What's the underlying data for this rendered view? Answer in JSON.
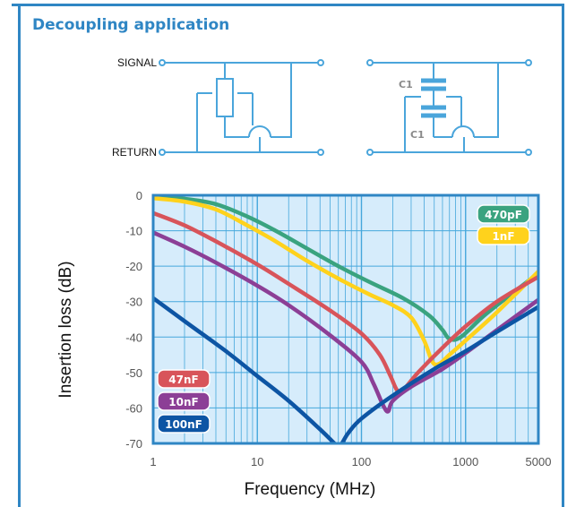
{
  "header": {
    "title": "Decoupling application"
  },
  "schematic": {
    "signal_label": "SIGNAL",
    "return_label": "RETURN",
    "cap_label_top": "C1",
    "cap_label_bottom": "C1"
  },
  "colors": {
    "frame": "#2f86c4",
    "plot_bg": "#d6ecfb",
    "grid": "#45a7dc"
  },
  "chart_data": {
    "type": "line",
    "xlabel": "Frequency (MHz)",
    "ylabel": "Insertion loss (dB)",
    "xscale": "log",
    "xlim": [
      1,
      5000
    ],
    "ylim": [
      -70,
      0
    ],
    "x_ticks": [
      {
        "value": 1,
        "label": "1"
      },
      {
        "value": 10,
        "label": "10"
      },
      {
        "value": 100,
        "label": "100"
      },
      {
        "value": 1000,
        "label": "1000"
      },
      {
        "value": 5000,
        "label": "5000"
      }
    ],
    "y_ticks": [
      {
        "value": 0,
        "label": "0"
      },
      {
        "value": -10,
        "label": "-10"
      },
      {
        "value": -20,
        "label": "-20"
      },
      {
        "value": -30,
        "label": "-30"
      },
      {
        "value": -40,
        "label": "-40"
      },
      {
        "value": -50,
        "label": "-50"
      },
      {
        "value": -60,
        "label": "-60"
      },
      {
        "value": -70,
        "label": "-70"
      }
    ],
    "grid": true,
    "legend_position": "split: top-right and bottom-left",
    "series": [
      {
        "name": "470pF",
        "color": "#3aa37f",
        "legend": "top",
        "x": [
          1,
          2,
          4,
          8,
          15,
          30,
          60,
          120,
          250,
          450,
          600,
          700,
          900,
          1500,
          3000,
          5000
        ],
        "y": [
          -0.5,
          -1,
          -2.5,
          -6,
          -10,
          -15,
          -20,
          -24.5,
          -29,
          -34,
          -38,
          -40.5,
          -40,
          -34,
          -27,
          -22
        ]
      },
      {
        "name": "1nF",
        "color": "#ffd21c",
        "legend": "top",
        "x": [
          1,
          2,
          4,
          8,
          15,
          30,
          60,
          120,
          200,
          300,
          400,
          480,
          560,
          700,
          1000,
          2000,
          5000
        ],
        "y": [
          -0.8,
          -1.8,
          -4,
          -8.5,
          -13,
          -18.5,
          -23.5,
          -28,
          -31,
          -34.5,
          -41,
          -47,
          -47.5,
          -45,
          -41,
          -33,
          -21.5
        ]
      },
      {
        "name": "47nF",
        "color": "#d8545a",
        "legend": "bottom",
        "x": [
          1,
          2,
          4,
          10,
          20,
          50,
          100,
          150,
          190,
          220,
          250,
          350,
          600,
          1000,
          2000,
          5000
        ],
        "y": [
          -5,
          -8.5,
          -13,
          -19.5,
          -25,
          -32.5,
          -39,
          -45,
          -51,
          -55,
          -55,
          -50,
          -43,
          -37,
          -30,
          -23
        ]
      },
      {
        "name": "10nF",
        "color": "#8c3f96",
        "legend": "bottom",
        "x": [
          1,
          2,
          4,
          10,
          20,
          50,
          100,
          130,
          160,
          180,
          200,
          300,
          600,
          1000,
          2000,
          5000
        ],
        "y": [
          -10.5,
          -14.5,
          -19,
          -25.5,
          -31,
          -39.5,
          -47,
          -53,
          -59,
          -61,
          -58,
          -54,
          -49,
          -44.5,
          -38,
          -29.5
        ]
      },
      {
        "name": "100nF",
        "color": "#0d55a4",
        "legend": "bottom",
        "x": [
          1,
          2,
          5,
          10,
          20,
          40,
          55,
          60,
          65,
          75,
          100,
          200,
          500,
          1000,
          2000,
          5000
        ],
        "y": [
          -29,
          -35.5,
          -44,
          -51,
          -58,
          -66,
          -70,
          -71,
          -70,
          -67,
          -63,
          -56.5,
          -49,
          -44,
          -38.5,
          -31.5
        ]
      }
    ]
  }
}
